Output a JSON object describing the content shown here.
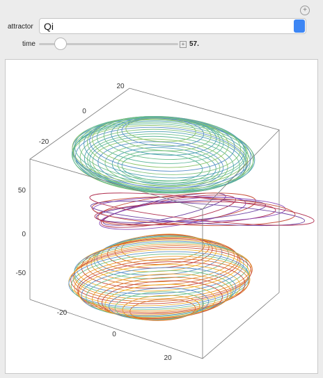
{
  "controls": {
    "attractor": {
      "label": "attractor",
      "value": "Qi"
    },
    "time": {
      "label": "time",
      "value": "57."
    }
  },
  "plot": {
    "axis_top": {
      "ticks": [
        "20",
        "0",
        "-20"
      ]
    },
    "axis_vertical": {
      "ticks": [
        "50",
        "0",
        "-50"
      ]
    },
    "axis_bottom": {
      "ticks": [
        "-20",
        "0",
        "20"
      ]
    }
  }
}
